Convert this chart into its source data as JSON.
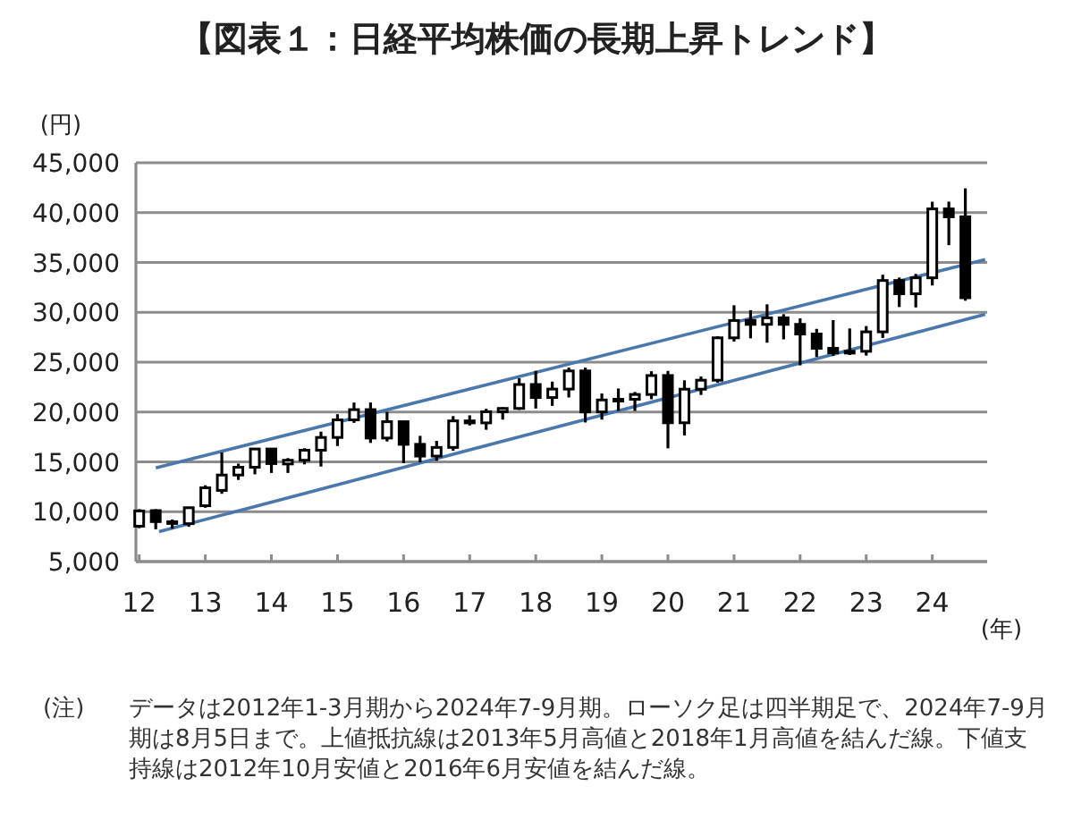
{
  "chart_data": {
    "type": "candlestick",
    "title": "【図表１：日経平均株価の長期上昇トレンド】",
    "ylabel": "(円)",
    "xlabel": "(年)",
    "annotations": [
      "(注)",
      "データは2012年1-3月期から2024年7-9月期。ローソク足は四半期足で、2024年7-9月期は8月5日まで。上値抵抗線は2013年5月高値と2018年1月高値を結んだ線。下値支持線は2012年10月安値と2016年6月安値を結んだ線。"
    ],
    "x": [
      2012,
      2012.25,
      2012.5,
      2012.75,
      2013,
      2013.25,
      2013.5,
      2013.75,
      2014,
      2014.25,
      2014.5,
      2014.75,
      2015,
      2015.25,
      2015.5,
      2015.75,
      2016,
      2016.25,
      2016.5,
      2016.75,
      2017,
      2017.25,
      2017.5,
      2017.75,
      2018,
      2018.25,
      2018.5,
      2018.75,
      2019,
      2019.25,
      2019.5,
      2019.75,
      2020,
      2020.25,
      2020.5,
      2020.75,
      2021,
      2021.25,
      2021.5,
      2021.75,
      2022,
      2022.25,
      2022.5,
      2022.75,
      2023,
      2023.25,
      2023.5,
      2023.75,
      2024,
      2024.25,
      2024.5
    ],
    "ohlc": [
      [
        8550,
        10250,
        8350,
        10080
      ],
      [
        10110,
        10250,
        8240,
        9010
      ],
      [
        9000,
        9220,
        8300,
        8870
      ],
      [
        8800,
        10430,
        8490,
        10400
      ],
      [
        10600,
        12650,
        10400,
        12400
      ],
      [
        12140,
        15940,
        11800,
        13680
      ],
      [
        13680,
        14820,
        13190,
        14460
      ],
      [
        14460,
        16320,
        13750,
        16290
      ],
      [
        16290,
        16320,
        13890,
        14830
      ],
      [
        14790,
        15380,
        13890,
        15160
      ],
      [
        15160,
        16370,
        14750,
        16170
      ],
      [
        16170,
        18030,
        14530,
        17450
      ],
      [
        17450,
        19780,
        16590,
        19210
      ],
      [
        19210,
        20950,
        18910,
        20240
      ],
      [
        20240,
        20950,
        16900,
        17390
      ],
      [
        17390,
        20010,
        17050,
        19030
      ],
      [
        19030,
        19040,
        14870,
        16760
      ],
      [
        16760,
        17610,
        14950,
        15580
      ],
      [
        15580,
        17100,
        15110,
        16450
      ],
      [
        16450,
        19590,
        16110,
        19110
      ],
      [
        19110,
        19670,
        18650,
        18910
      ],
      [
        18910,
        20320,
        18220,
        20030
      ],
      [
        20030,
        20480,
        19240,
        20360
      ],
      [
        20360,
        23380,
        20210,
        22760
      ],
      [
        22760,
        24130,
        20350,
        21450
      ],
      [
        21450,
        23050,
        20620,
        22300
      ],
      [
        22300,
        24450,
        21460,
        24120
      ],
      [
        24120,
        24450,
        18950,
        20010
      ],
      [
        20010,
        21860,
        19240,
        21210
      ],
      [
        21210,
        22360,
        20110,
        21280
      ],
      [
        21280,
        22010,
        20110,
        21760
      ],
      [
        21760,
        24090,
        21280,
        23660
      ],
      [
        23660,
        24120,
        16360,
        18920
      ],
      [
        18920,
        23180,
        17650,
        22290
      ],
      [
        22290,
        23560,
        21710,
        23190
      ],
      [
        23190,
        27600,
        22950,
        27440
      ],
      [
        27440,
        30710,
        27060,
        29180
      ],
      [
        29180,
        30210,
        27390,
        28790
      ],
      [
        28790,
        30800,
        26950,
        29450
      ],
      [
        29450,
        29810,
        27290,
        28790
      ],
      [
        28790,
        29390,
        24680,
        27820
      ],
      [
        27820,
        28340,
        25520,
        26390
      ],
      [
        26390,
        29220,
        25620,
        25940
      ],
      [
        25940,
        28380,
        25720,
        26090
      ],
      [
        26090,
        28620,
        25660,
        28040
      ],
      [
        28040,
        33770,
        27430,
        33190
      ],
      [
        33190,
        33490,
        30530,
        31860
      ],
      [
        31860,
        33850,
        30490,
        33460
      ],
      [
        33460,
        41090,
        32690,
        40370
      ],
      [
        40370,
        41100,
        36730,
        39580
      ],
      [
        39580,
        42430,
        31160,
        31460
      ]
    ],
    "series": [
      {
        "type": "line",
        "color": "#4a78ad",
        "x": [
          2012.25,
          2024.8
        ],
        "values": [
          14400,
          35300
        ]
      },
      {
        "type": "line",
        "color": "#4a78ad",
        "x": [
          2012.3,
          2024.8
        ],
        "values": [
          8000,
          29800
        ]
      }
    ],
    "xlim": [
      2011.95,
      2024.83
    ],
    "ylim": [
      5000,
      45000
    ],
    "xticks": [
      {
        "value": 2012,
        "label": "12"
      },
      {
        "value": 2013,
        "label": "13"
      },
      {
        "value": 2014,
        "label": "14"
      },
      {
        "value": 2015,
        "label": "15"
      },
      {
        "value": 2016,
        "label": "16"
      },
      {
        "value": 2017,
        "label": "17"
      },
      {
        "value": 2018,
        "label": "18"
      },
      {
        "value": 2019,
        "label": "19"
      },
      {
        "value": 2020,
        "label": "20"
      },
      {
        "value": 2021,
        "label": "21"
      },
      {
        "value": 2022,
        "label": "22"
      },
      {
        "value": 2023,
        "label": "23"
      },
      {
        "value": 2024,
        "label": "24"
      }
    ],
    "yticks": [
      {
        "value": 5000,
        "label": "5,000"
      },
      {
        "value": 10000,
        "label": "10,000"
      },
      {
        "value": 15000,
        "label": "15,000"
      },
      {
        "value": 20000,
        "label": "20,000"
      },
      {
        "value": 25000,
        "label": "25,000"
      },
      {
        "value": 30000,
        "label": "30,000"
      },
      {
        "value": 35000,
        "label": "35,000"
      },
      {
        "value": 40000,
        "label": "40,000"
      },
      {
        "value": 45000,
        "label": "45,000"
      }
    ],
    "grid": "y"
  }
}
